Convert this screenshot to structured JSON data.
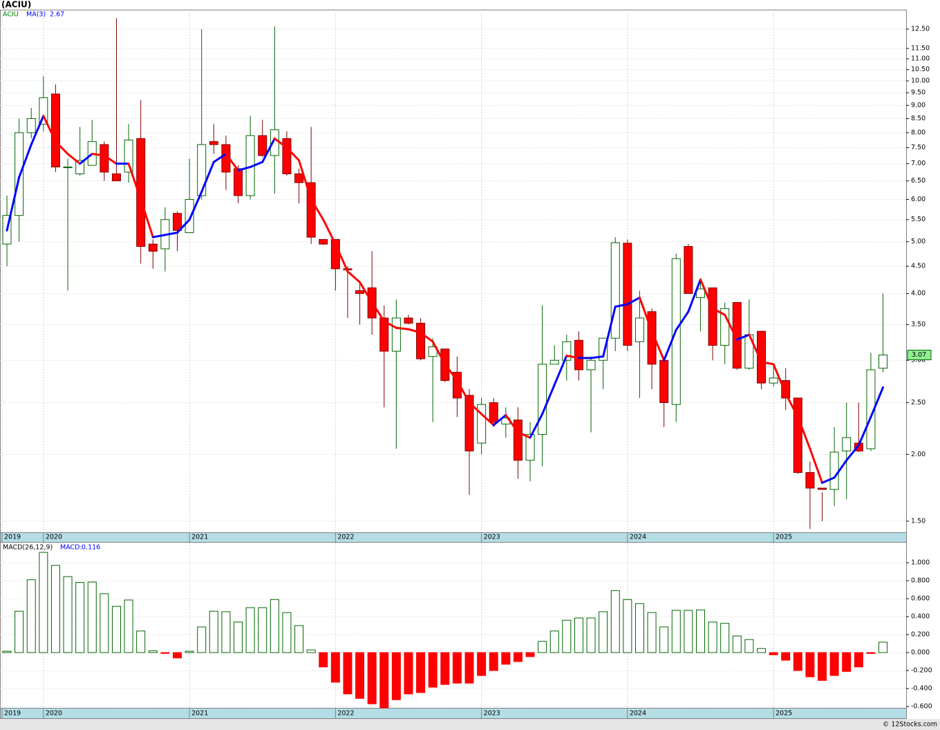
{
  "chart_data": [
    {
      "type": "candlestick",
      "title": "(ACIU)",
      "symbol": "ACIU",
      "xlim": [
        -0.57,
        73.9
      ],
      "xticks": [
        {
          "value": -0.4,
          "label": "2019"
        },
        {
          "value": 3,
          "label": "2020"
        },
        {
          "value": 15,
          "label": "2021"
        },
        {
          "value": 27,
          "label": "2022"
        },
        {
          "value": 39,
          "label": "2023"
        },
        {
          "value": 51,
          "label": "2024"
        },
        {
          "value": 63,
          "label": "2025"
        }
      ],
      "log_scale": true,
      "grid": true,
      "ylim": [
        1.43,
        13.59
      ],
      "yticks": [
        {
          "value": 1.5,
          "label": "1.50"
        },
        {
          "value": 2,
          "label": "2.00"
        },
        {
          "value": 2.5,
          "label": "2.50"
        },
        {
          "value": 3,
          "label": "3.00"
        },
        {
          "value": 3.5,
          "label": "3.50"
        },
        {
          "value": 4,
          "label": "4.00"
        },
        {
          "value": 4.5,
          "label": "4.50"
        },
        {
          "value": 5,
          "label": "5.00"
        },
        {
          "value": 5.5,
          "label": "5.50"
        },
        {
          "value": 6,
          "label": "6.00"
        },
        {
          "value": 6.5,
          "label": "6.50"
        },
        {
          "value": 7,
          "label": "7.00"
        },
        {
          "value": 7.5,
          "label": "7.50"
        },
        {
          "value": 8,
          "label": "8.00"
        },
        {
          "value": 8.5,
          "label": "8.50"
        },
        {
          "value": 9,
          "label": "9.00"
        },
        {
          "value": 9.5,
          "label": "9.50"
        },
        {
          "value": 10,
          "label": "10.00"
        },
        {
          "value": 10.5,
          "label": "10.50"
        },
        {
          "value": 11,
          "label": "11.00"
        },
        {
          "value": 11.5,
          "label": "11.50"
        },
        {
          "value": 12.5,
          "label": "12.50"
        }
      ],
      "colors": {
        "up": "#006400",
        "down": "#ff0000",
        "down_wick": "#800000",
        "last": "#90ee90"
      },
      "open": [
        4.95,
        5.6,
        8.0,
        8.3,
        9.45,
        6.9,
        6.7,
        6.95,
        7.6,
        6.7,
        6.75,
        7.8,
        4.95,
        4.85,
        5.65,
        5.2,
        6.1,
        7.7,
        7.6,
        6.85,
        6.1,
        7.9,
        7.25,
        7.8,
        6.7,
        6.45,
        5.05,
        5.05,
        4.45,
        4.05,
        4.1,
        3.6,
        3.12,
        3.6,
        3.52,
        3.05,
        3.15,
        2.85,
        2.58,
        2.1,
        2.5,
        2.28,
        2.32,
        1.95,
        2.18,
        2.95,
        3.0,
        3.27,
        2.88,
        3.0,
        3.3,
        4.97,
        3.25,
        3.7,
        3.0,
        2.48,
        4.9,
        3.93,
        4.1,
        3.2,
        3.85,
        2.9,
        3.4,
        2.72,
        2.75,
        2.55,
        1.85,
        1.73,
        1.72,
        2.03,
        2.1,
        2.05,
        2.9
      ],
      "high": [
        6.1,
        8.5,
        8.9,
        10.2,
        9.85,
        7.15,
        8.2,
        8.45,
        7.7,
        13.1,
        8.3,
        9.2,
        5.05,
        5.8,
        5.7,
        7.15,
        12.5,
        8.3,
        7.9,
        6.95,
        8.6,
        8.45,
        12.65,
        8.05,
        6.85,
        8.2,
        5.05,
        5.05,
        4.5,
        4.2,
        4.8,
        3.8,
        3.9,
        3.65,
        3.6,
        3.3,
        3.15,
        3.05,
        2.65,
        2.55,
        2.55,
        2.45,
        2.45,
        2.3,
        3.8,
        3.2,
        3.35,
        3.4,
        3.05,
        3.3,
        5.1,
        5.05,
        4.05,
        3.75,
        3.05,
        4.75,
        4.95,
        4.25,
        4.1,
        3.85,
        3.85,
        3.9,
        3.4,
        2.95,
        2.9,
        2.55,
        1.94,
        1.7,
        2.25,
        2.5,
        2.5,
        3.1,
        4.0
      ],
      "low": [
        4.5,
        5.0,
        7.8,
        8.05,
        6.75,
        4.05,
        6.65,
        6.95,
        6.5,
        6.5,
        6.45,
        4.55,
        4.45,
        4.4,
        4.8,
        5.2,
        6.0,
        7.3,
        6.25,
        5.9,
        6.0,
        7.2,
        6.15,
        6.65,
        5.9,
        4.95,
        4.93,
        4.05,
        3.6,
        3.5,
        3.35,
        2.45,
        2.05,
        3.5,
        3.0,
        2.3,
        2.73,
        2.35,
        1.68,
        2.0,
        2.25,
        2.15,
        1.8,
        1.78,
        1.9,
        2.95,
        2.75,
        2.75,
        2.2,
        2.65,
        3.12,
        3.12,
        2.55,
        2.65,
        2.25,
        2.3,
        4.0,
        3.4,
        3.0,
        2.95,
        2.88,
        2.88,
        2.65,
        2.68,
        2.42,
        1.84,
        1.45,
        1.5,
        1.6,
        1.65,
        2.02,
        2.03,
        2.85
      ],
      "close": [
        5.6,
        8.0,
        8.5,
        9.3,
        6.9,
        6.9,
        7.1,
        7.7,
        6.75,
        6.5,
        7.75,
        4.9,
        4.8,
        5.5,
        5.25,
        6.0,
        7.6,
        7.6,
        6.75,
        6.1,
        7.9,
        7.25,
        8.1,
        6.7,
        6.45,
        5.1,
        4.95,
        4.45,
        4.43,
        4.0,
        3.6,
        3.12,
        3.6,
        3.52,
        3.02,
        3.18,
        2.75,
        2.55,
        2.03,
        2.48,
        2.3,
        2.34,
        1.95,
        2.18,
        2.95,
        3.0,
        3.25,
        2.88,
        3.0,
        3.3,
        4.98,
        3.2,
        3.6,
        2.95,
        2.5,
        4.65,
        4.0,
        4.08,
        3.2,
        3.75,
        2.9,
        3.35,
        2.72,
        2.78,
        2.55,
        1.85,
        1.73,
        1.72,
        2.02,
        2.15,
        2.03,
        2.88,
        3.07
      ],
      "ma": {
        "name": "MA(3)",
        "up_color": "#0000ff",
        "down_color": "#ff0000",
        "values": [
          5.25,
          6.6,
          7.6,
          8.6,
          7.7,
          7.3,
          7.0,
          7.3,
          7.25,
          7.0,
          7.0,
          6.0,
          5.1,
          5.15,
          5.2,
          5.5,
          6.2,
          7.05,
          7.3,
          6.8,
          6.9,
          7.05,
          7.8,
          7.5,
          7.1,
          6.0,
          5.5,
          4.95,
          4.4,
          4.2,
          3.85,
          3.55,
          3.45,
          3.43,
          3.38,
          3.25,
          2.95,
          2.75,
          2.5,
          2.38,
          2.27,
          2.37,
          2.2,
          2.15,
          2.38,
          2.7,
          3.06,
          3.03,
          3.03,
          3.05,
          3.78,
          3.82,
          3.93,
          3.4,
          3.0,
          3.42,
          3.7,
          4.25,
          3.75,
          3.65,
          3.28,
          3.35,
          2.98,
          2.95,
          2.6,
          2.35,
          2.05,
          1.77,
          1.81,
          1.95,
          2.08,
          2.35,
          2.67
        ]
      }
    },
    {
      "type": "bar",
      "title": "MACD(26,12,9)",
      "current_label": "MACD:",
      "xlim": [
        -0.57,
        73.9
      ],
      "xticks": [
        {
          "value": -0.4,
          "label": "2019"
        },
        {
          "value": 3,
          "label": "2020"
        },
        {
          "value": 15,
          "label": "2021"
        },
        {
          "value": 27,
          "label": "2022"
        },
        {
          "value": 39,
          "label": "2023"
        },
        {
          "value": 51,
          "label": "2024"
        },
        {
          "value": 63,
          "label": "2025"
        }
      ],
      "grid": true,
      "ylim": [
        -0.623,
        1.223
      ],
      "yticks": [
        {
          "value": 1,
          "label": "1.000"
        },
        {
          "value": 0.8,
          "label": "0.800"
        },
        {
          "value": 0.6,
          "label": "0.600"
        },
        {
          "value": 0.4,
          "label": "0.400"
        },
        {
          "value": 0.2,
          "label": "0.200"
        },
        {
          "value": 0,
          "label": "0.000"
        },
        {
          "value": -0.2,
          "label": "-0.200"
        },
        {
          "value": -0.4,
          "label": "-0.400"
        },
        {
          "value": -0.6,
          "label": "-0.600"
        }
      ],
      "colors": {
        "up": "#006400",
        "down": "#ff0000"
      },
      "values": [
        0.015,
        0.46,
        0.81,
        1.115,
        0.97,
        0.845,
        0.78,
        0.785,
        0.655,
        0.515,
        0.585,
        0.24,
        0.02,
        -0.01,
        -0.06,
        0.015,
        0.285,
        0.46,
        0.455,
        0.34,
        0.5,
        0.5,
        0.59,
        0.445,
        0.3,
        0.03,
        -0.16,
        -0.33,
        -0.46,
        -0.51,
        -0.57,
        -0.615,
        -0.525,
        -0.46,
        -0.445,
        -0.385,
        -0.355,
        -0.34,
        -0.34,
        -0.255,
        -0.2,
        -0.13,
        -0.1,
        -0.045,
        0.125,
        0.24,
        0.36,
        0.385,
        0.385,
        0.455,
        0.69,
        0.59,
        0.545,
        0.445,
        0.285,
        0.47,
        0.47,
        0.475,
        0.34,
        0.325,
        0.185,
        0.145,
        0.045,
        -0.025,
        -0.085,
        -0.2,
        -0.27,
        -0.31,
        -0.255,
        -0.21,
        -0.16,
        -0.01,
        0.116
      ]
    }
  ],
  "source": "© 12Stocks.com"
}
